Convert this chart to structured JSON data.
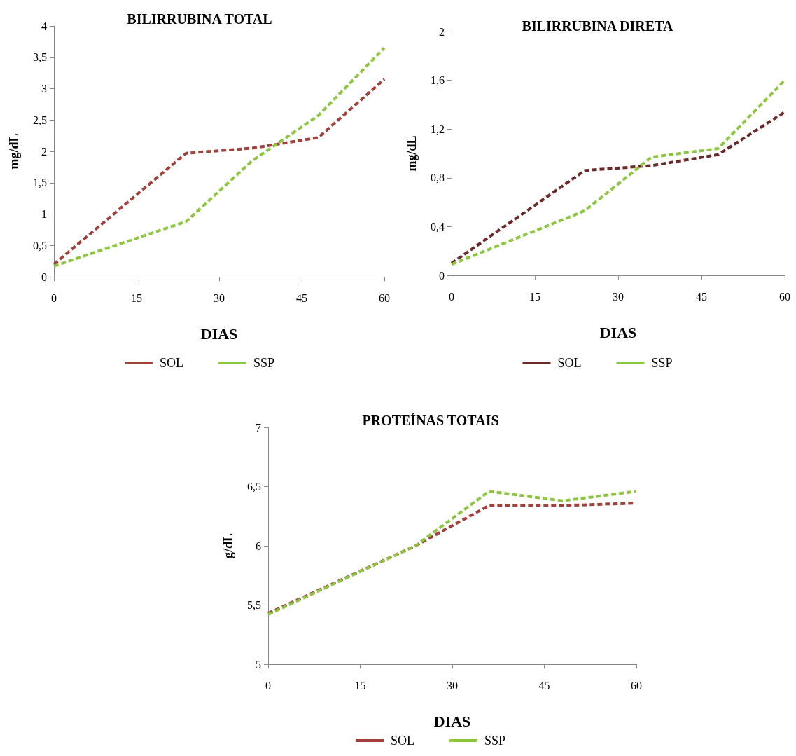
{
  "chart_data": [
    {
      "type": "line",
      "title": "BILIRRUBINA TOTAL",
      "xlabel": "DIAS",
      "ylabel": "mg/dL",
      "xlim": [
        0,
        60
      ],
      "xticks": [
        0,
        15,
        30,
        45,
        60
      ],
      "ylim": [
        0,
        4
      ],
      "yticks": [
        0,
        {
          "value": 0.5,
          "label": "0,5"
        },
        1,
        {
          "value": 1.5,
          "label": "1,5"
        },
        2,
        {
          "value": 2.5,
          "label": "2,5"
        },
        3,
        {
          "value": 3.5,
          "label": "3,5"
        },
        4
      ],
      "legend": "bottom",
      "grid": false,
      "marker": "none",
      "series": [
        {
          "name": "SOL",
          "color": "#a0413c",
          "line_style": "dashed",
          "x": [
            0,
            24,
            36,
            48,
            60
          ],
          "values": [
            0.2,
            1.97,
            2.05,
            2.22,
            3.15
          ]
        },
        {
          "name": "SSP",
          "color": "#8dc63f",
          "line_style": "dashed",
          "x": [
            0,
            24,
            36,
            48,
            60
          ],
          "values": [
            0.17,
            0.88,
            1.85,
            2.57,
            3.65
          ]
        }
      ]
    },
    {
      "type": "line",
      "title": "BILIRRUBINA DIRETA",
      "xlabel": "DIAS",
      "ylabel": "mg/dL",
      "xlim": [
        0,
        60
      ],
      "xticks": [
        0,
        15,
        30,
        45,
        60
      ],
      "ylim": [
        0,
        2
      ],
      "yticks": [
        0,
        {
          "value": 0.4,
          "label": "0,4"
        },
        {
          "value": 0.8,
          "label": "0,8"
        },
        {
          "value": 1.2,
          "label": "1,2"
        },
        {
          "value": 1.6,
          "label": "1,6"
        },
        2
      ],
      "legend": "bottom",
      "grid": false,
      "marker": "none",
      "series": [
        {
          "name": "SOL",
          "color": "#6b2a2a",
          "line_style": "dashed",
          "x": [
            0,
            24,
            36,
            48,
            60
          ],
          "values": [
            0.1,
            0.86,
            0.9,
            0.99,
            1.34
          ]
        },
        {
          "name": "SSP",
          "color": "#8dc63f",
          "line_style": "dashed",
          "x": [
            0,
            24,
            36,
            48,
            60
          ],
          "values": [
            0.09,
            0.53,
            0.97,
            1.04,
            1.6
          ]
        }
      ]
    },
    {
      "type": "line",
      "title": "PROTEÍNAS TOTAIS",
      "xlabel": "DIAS",
      "ylabel": "g/dL",
      "xlim": [
        0,
        60
      ],
      "xticks": [
        0,
        15,
        30,
        45,
        60
      ],
      "ylim": [
        5,
        7
      ],
      "yticks": [
        5,
        {
          "value": 5.5,
          "label": "5,5"
        },
        6,
        {
          "value": 6.5,
          "label": "6,5"
        },
        7
      ],
      "legend": "bottom",
      "grid": false,
      "marker": "none",
      "series": [
        {
          "name": "SOL",
          "color": "#a0413c",
          "line_style": "dashed",
          "x": [
            0,
            24,
            36,
            48,
            60
          ],
          "values": [
            5.43,
            6.0,
            6.34,
            6.34,
            6.36
          ]
        },
        {
          "name": "SSP",
          "color": "#8dc63f",
          "line_style": "dashed",
          "x": [
            0,
            24,
            36,
            48,
            60
          ],
          "values": [
            5.42,
            6.0,
            6.46,
            6.38,
            6.46
          ]
        }
      ]
    }
  ]
}
